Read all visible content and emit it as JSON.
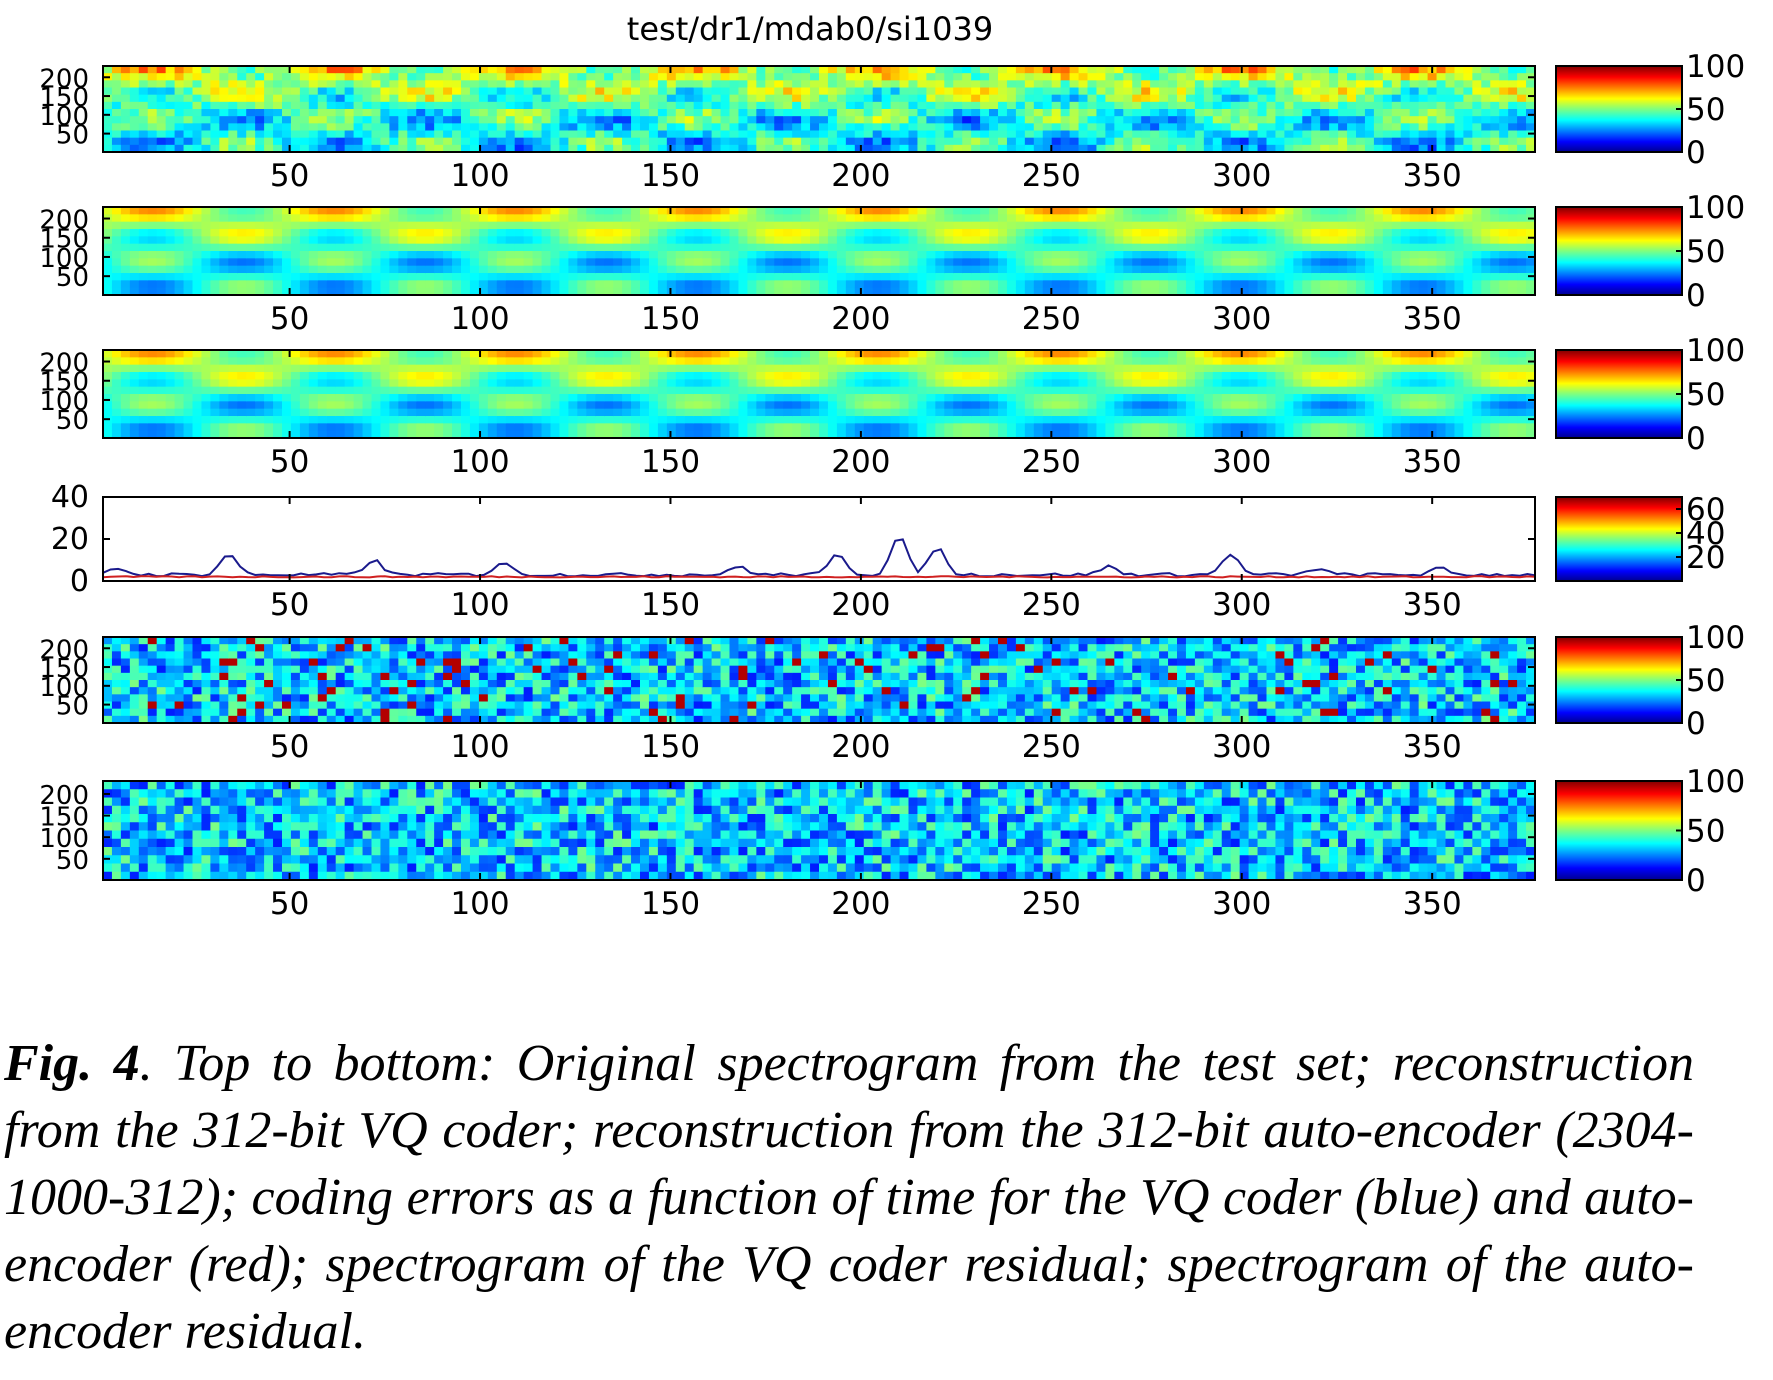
{
  "chart_data": [
    {
      "type": "heatmap",
      "title": "test/dr1/mdab0/si1039",
      "xlabel": "",
      "ylabel": "",
      "x_ticks": [
        50,
        100,
        150,
        200,
        250,
        300,
        350
      ],
      "y_ticks": [
        50,
        100,
        150,
        200
      ],
      "xlim": [
        1,
        377
      ],
      "ylim": [
        1,
        230
      ],
      "colorbar": {
        "ticks": [
          0,
          50,
          100
        ],
        "range": [
          0,
          100
        ],
        "colormap": "jet"
      },
      "content": "original spectrogram"
    },
    {
      "type": "heatmap",
      "x_ticks": [
        50,
        100,
        150,
        200,
        250,
        300,
        350
      ],
      "y_ticks": [
        50,
        100,
        150,
        200
      ],
      "xlim": [
        1,
        377
      ],
      "ylim": [
        1,
        230
      ],
      "colorbar": {
        "ticks": [
          0,
          50,
          100
        ],
        "range": [
          0,
          100
        ],
        "colormap": "jet"
      },
      "content": "VQ reconstruction"
    },
    {
      "type": "heatmap",
      "x_ticks": [
        50,
        100,
        150,
        200,
        250,
        300,
        350
      ],
      "y_ticks": [
        50,
        100,
        150,
        200
      ],
      "xlim": [
        1,
        377
      ],
      "ylim": [
        1,
        230
      ],
      "colorbar": {
        "ticks": [
          0,
          50,
          100
        ],
        "range": [
          0,
          100
        ],
        "colormap": "jet"
      },
      "content": "auto-encoder reconstruction"
    },
    {
      "type": "line",
      "x_ticks": [
        50,
        100,
        150,
        200,
        250,
        300,
        350
      ],
      "y_ticks": [
        0,
        20,
        40
      ],
      "xlim": [
        1,
        377
      ],
      "ylim": [
        0,
        40
      ],
      "colorbar": {
        "ticks": [
          20,
          40,
          60
        ],
        "range": [
          0,
          70
        ],
        "colormap": "jet"
      },
      "series": [
        {
          "color": "#1a1a8c",
          "peaks": [
            [
              5,
              6
            ],
            [
              34,
              13
            ],
            [
              72,
              10
            ],
            [
              106,
              9
            ],
            [
              168,
              7
            ],
            [
              194,
              13
            ],
            [
              210,
              21
            ],
            [
              220,
              16
            ],
            [
              265,
              7
            ],
            [
              297,
              13
            ],
            [
              320,
              6
            ],
            [
              352,
              6
            ]
          ],
          "baseline": 3
        },
        {
          "color": "#d02020",
          "baseline": 2
        }
      ]
    },
    {
      "type": "heatmap",
      "x_ticks": [
        50,
        100,
        150,
        200,
        250,
        300,
        350
      ],
      "y_ticks": [
        50,
        100,
        150,
        200
      ],
      "xlim": [
        1,
        377
      ],
      "ylim": [
        1,
        230
      ],
      "colorbar": {
        "ticks": [
          0,
          50,
          100
        ],
        "range": [
          0,
          100
        ],
        "colormap": "jet"
      },
      "content": "VQ coder residual"
    },
    {
      "type": "heatmap",
      "x_ticks": [
        50,
        100,
        150,
        200,
        250,
        300,
        350
      ],
      "y_ticks": [
        50,
        100,
        150,
        200
      ],
      "xlim": [
        1,
        377
      ],
      "ylim": [
        1,
        230
      ],
      "colorbar": {
        "ticks": [
          0,
          50,
          100
        ],
        "range": [
          0,
          100
        ],
        "colormap": "jet"
      },
      "content": "auto-encoder residual"
    }
  ],
  "caption": {
    "label": "Fig. 4",
    "text": ". Top to bottom: Original spectrogram from the test set; reconstruction from the 312-bit VQ coder; reconstruction from the 312-bit auto-encoder (2304-1000-312); coding errors as a function of time for the VQ coder (blue) and auto-encoder (red); spectrogram of the VQ coder residual; spectrogram of the auto-encoder residual."
  }
}
